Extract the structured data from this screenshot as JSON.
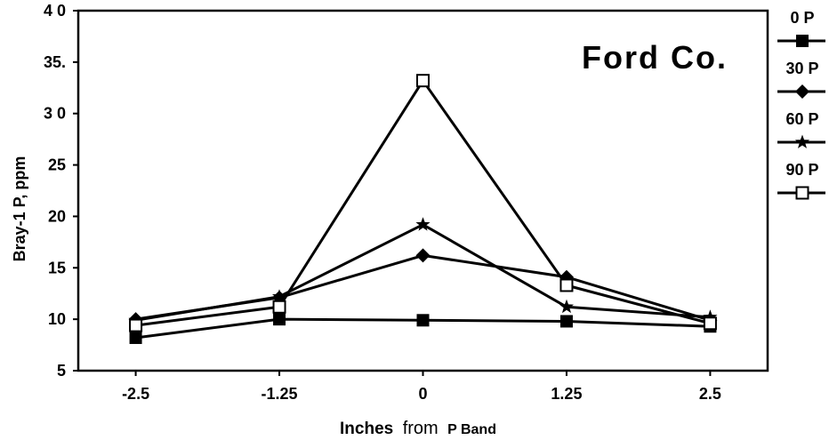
{
  "chart_data": {
    "type": "line",
    "title": "Ford Co.",
    "xlabel_parts": [
      "Inches",
      "from",
      "P Band"
    ],
    "ylabel": "Bray-1 P, ppm",
    "categories": [
      "-2.5",
      "-1.25",
      "0",
      "1.25",
      "2.5"
    ],
    "x": [
      -2.5,
      -1.25,
      0,
      1.25,
      2.5
    ],
    "xlim": [
      -3.0,
      3.0
    ],
    "ylim": [
      5,
      40
    ],
    "y_ticks": [
      5,
      10,
      15,
      20,
      25,
      30,
      35,
      40
    ],
    "y_tick_labels": [
      "5",
      "10",
      "15",
      "20",
      "25",
      "3 0",
      "35.",
      "4 0"
    ],
    "legend_placement": "right",
    "grid": false,
    "series": [
      {
        "name": "0 P",
        "marker": "filled-square",
        "values": [
          8.2,
          10.0,
          9.9,
          9.8,
          9.3
        ]
      },
      {
        "name": "30 P",
        "marker": "diamond",
        "values": [
          10.0,
          12.1,
          16.2,
          14.1,
          9.9
        ]
      },
      {
        "name": "60 P",
        "marker": "star",
        "values": [
          9.9,
          12.2,
          19.2,
          11.2,
          10.2
        ]
      },
      {
        "name": "90 P",
        "marker": "open-square",
        "values": [
          9.4,
          11.2,
          33.2,
          13.3,
          9.6
        ]
      }
    ]
  }
}
